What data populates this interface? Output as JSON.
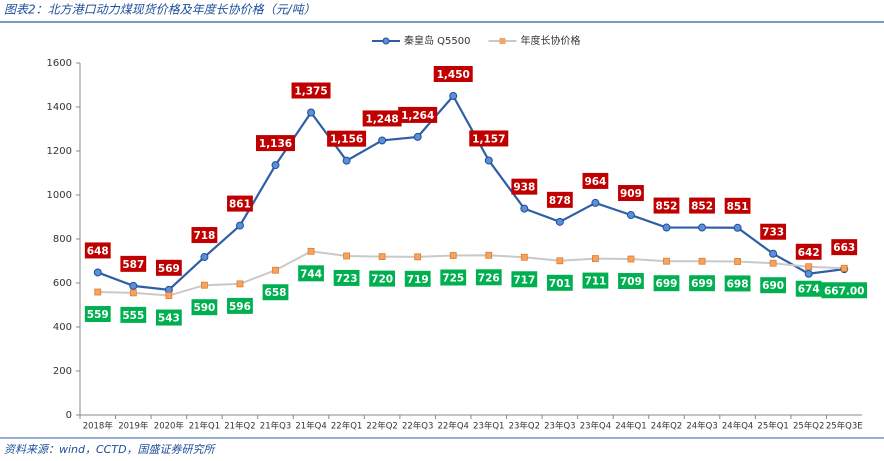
{
  "chart_data": {
    "type": "line",
    "title": "图表2：北方港口动力煤现货价格及年度长协价格（元/吨）",
    "source": "资料来源：wind，CCTD，国盛证券研究所",
    "categories": [
      "2018年",
      "2019年",
      "2020年",
      "21年Q1",
      "21年Q2",
      "21年Q3",
      "21年Q4",
      "22年Q1",
      "22年Q2",
      "22年Q3",
      "22年Q4",
      "23年Q1",
      "23年Q2",
      "23年Q3",
      "23年Q4",
      "24年Q1",
      "24年Q2",
      "24年Q3",
      "24年Q4",
      "25年Q1",
      "25年Q2",
      "25年Q3E"
    ],
    "series": [
      {
        "name": "秦皇岛 Q5500",
        "color": "#2e5fa5",
        "values": [
          648,
          587,
          569,
          718,
          861,
          1136,
          1375,
          1156,
          1248,
          1264,
          1450,
          1157,
          938,
          878,
          964,
          909,
          852,
          852,
          851,
          733,
          642,
          663
        ],
        "value_labels": [
          "648",
          "587",
          "569",
          "718",
          "861",
          "1,136",
          "1,375",
          "1,156",
          "1,248",
          "1,264",
          "1,450",
          "1,157",
          "938",
          "878",
          "964",
          "909",
          "852",
          "852",
          "851",
          "733",
          "642",
          "663"
        ]
      },
      {
        "name": "年度长协价格",
        "color": "#c9c9c9",
        "values": [
          559,
          555,
          543,
          590,
          596,
          658,
          744,
          723,
          720,
          719,
          725,
          726,
          717,
          701,
          711,
          709,
          699,
          699,
          698,
          690,
          674,
          667
        ],
        "value_labels": [
          "559",
          "555",
          "543",
          "590",
          "596",
          "658",
          "744",
          "723",
          "720",
          "719",
          "725",
          "726",
          "717",
          "701",
          "711",
          "709",
          "699",
          "699",
          "698",
          "690",
          "674",
          "667.00"
        ]
      }
    ],
    "ylim": [
      0,
      1600
    ],
    "yticks": [
      0,
      200,
      400,
      600,
      800,
      1000,
      1200,
      1400,
      1600
    ],
    "legend": "top"
  }
}
